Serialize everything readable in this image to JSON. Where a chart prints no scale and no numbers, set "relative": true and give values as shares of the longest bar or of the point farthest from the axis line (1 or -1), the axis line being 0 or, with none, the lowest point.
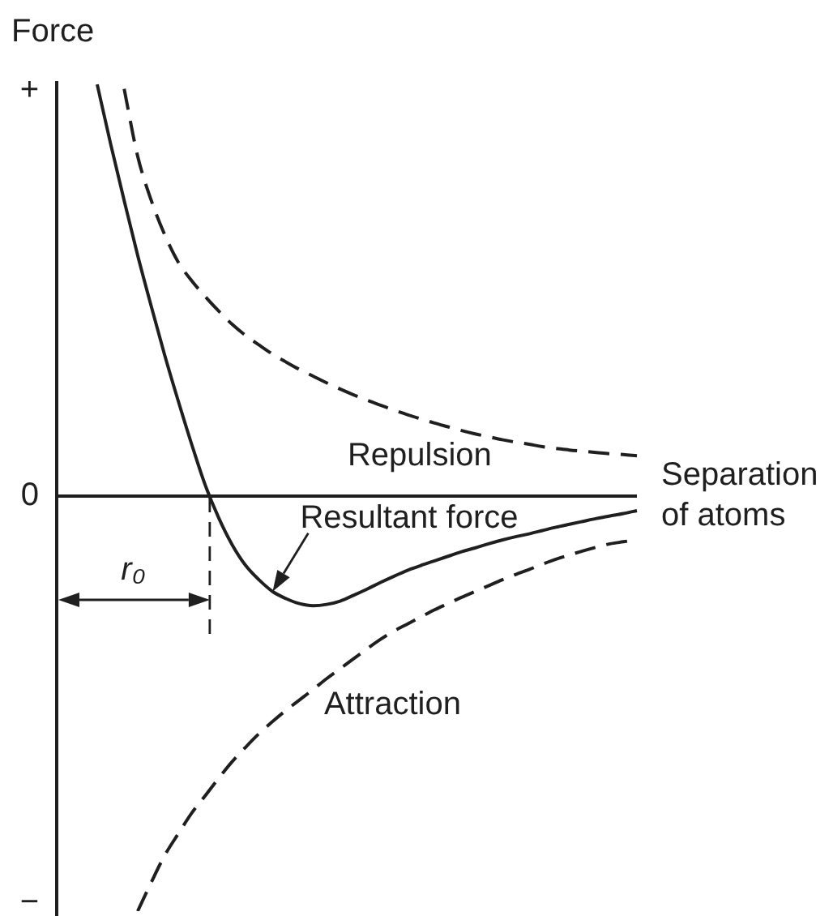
{
  "chart_data": {
    "type": "line",
    "relative": true,
    "ylabel": "Force",
    "xlabel": "Separation of atoms",
    "grid": false,
    "legend": false,
    "marker": "none",
    "categories": [
      null,
      null,
      null,
      null,
      null,
      null,
      null,
      null,
      null,
      null,
      null,
      null,
      null,
      null,
      null,
      null,
      null,
      null,
      null,
      null,
      null,
      null,
      null,
      null,
      null,
      null,
      null,
      null,
      null,
      null,
      null,
      null,
      null,
      null,
      null,
      null,
      null,
      null,
      null,
      null,
      null,
      null,
      null,
      null
    ],
    "series": [
      {
        "name": "Resultant force",
        "color": "#1f1f1f",
        "line_style": "solid",
        "values": [
          null,
          null,
          null,
          0.992,
          0.848,
          0.712,
          0.58,
          0.458,
          0.34,
          0.23,
          0.125,
          0.027,
          -0.052,
          -0.117,
          -0.167,
          -0.202,
          -0.23,
          -0.247,
          -0.259,
          -0.264,
          -0.261,
          -0.253,
          -0.239,
          -0.224,
          -0.208,
          -0.193,
          -0.179,
          -0.167,
          -0.156,
          -0.145,
          -0.134,
          -0.125,
          -0.115,
          -0.106,
          -0.098,
          -0.091,
          -0.083,
          -0.075,
          -0.068,
          -0.061,
          -0.054,
          -0.048,
          -0.042,
          -0.035
        ]
      },
      {
        "name": "Repulsion",
        "color": "#1f1f1f",
        "line_style": "dashed",
        "values": [
          null,
          null,
          null,
          null,
          null,
          0.981,
          0.819,
          0.713,
          0.63,
          0.564,
          0.519,
          0.481,
          0.446,
          0.414,
          0.387,
          0.364,
          0.342,
          0.323,
          0.305,
          0.289,
          0.273,
          0.258,
          0.244,
          0.231,
          0.219,
          0.207,
          0.196,
          0.186,
          0.176,
          0.167,
          0.158,
          0.15,
          0.143,
          0.136,
          0.13,
          0.125,
          0.119,
          0.115,
          0.111,
          0.108,
          0.105,
          0.102,
          0.1,
          0.097
        ]
      },
      {
        "name": "Attraction",
        "color": "#1f1f1f",
        "line_style": "dashed",
        "values": [
          null,
          null,
          null,
          null,
          null,
          null,
          -1,
          -0.931,
          -0.866,
          -0.814,
          -0.764,
          -0.722,
          -0.68,
          -0.64,
          -0.605,
          -0.572,
          -0.543,
          -0.516,
          -0.491,
          -0.466,
          -0.44,
          -0.416,
          -0.392,
          -0.368,
          -0.345,
          -0.325,
          -0.308,
          -0.291,
          -0.274,
          -0.259,
          -0.244,
          -0.23,
          -0.216,
          -0.202,
          -0.189,
          -0.177,
          -0.164,
          -0.152,
          -0.142,
          -0.132,
          -0.123,
          -0.115,
          -0.11,
          -0.105
        ]
      }
    ],
    "annotations": [
      "+",
      "0",
      "−",
      "r₀"
    ]
  }
}
